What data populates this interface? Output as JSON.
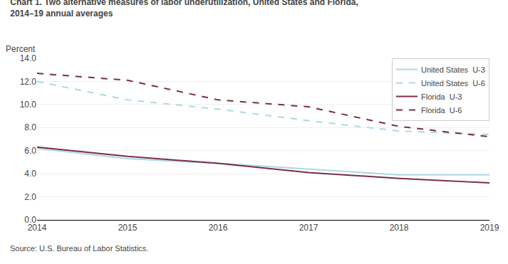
{
  "chart_data": {
    "type": "line",
    "title": "Chart 1. Two alternative measures of labor underutilization, United States and Florida,",
    "subtitle": "2014–19 annual averages",
    "ylabel": "Percent",
    "annotations": [
      "Source: U.S. Bureau of Labor Statistics."
    ],
    "x": [
      2014,
      2015,
      2016,
      2017,
      2018,
      2019
    ],
    "series": [
      {
        "name": "United States  U-3",
        "color": "#add8e6",
        "line_style": "solid",
        "values": [
          6.2,
          5.3,
          4.9,
          4.4,
          3.9,
          3.9
        ]
      },
      {
        "name": "United States  U-6",
        "color": "#add8e6",
        "line_style": "dashed",
        "values": [
          12.0,
          10.4,
          9.6,
          8.6,
          7.7,
          7.4
        ]
      },
      {
        "name": "Florida  U-3",
        "color": "#7B2D49",
        "line_style": "solid",
        "values": [
          6.3,
          5.5,
          4.9,
          4.1,
          3.6,
          3.2
        ]
      },
      {
        "name": "Florida  U-6",
        "color": "#7B2D49",
        "line_style": "dashed",
        "values": [
          12.7,
          12.1,
          10.4,
          9.8,
          8.1,
          7.2
        ]
      }
    ],
    "xlim": [
      2014,
      2019
    ],
    "xticks": [
      2014,
      2015,
      2016,
      2017,
      2018,
      2019
    ],
    "ylim": [
      0,
      14.0
    ],
    "yticks": [
      {
        "value": 0.0,
        "label": "0.0"
      },
      {
        "value": 2.0,
        "label": "2.0"
      },
      {
        "value": 4.0,
        "label": "4.0"
      },
      {
        "value": 6.0,
        "label": "6.0"
      },
      {
        "value": 8.0,
        "label": "8.0"
      },
      {
        "value": 10.0,
        "label": "10.0"
      },
      {
        "value": 12.0,
        "label": "12.0"
      },
      {
        "value": 14.0,
        "label": "14.0"
      }
    ],
    "grid": "y",
    "legend": "upper right"
  }
}
